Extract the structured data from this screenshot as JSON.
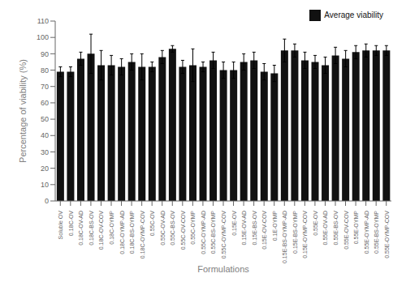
{
  "chart_data": {
    "type": "bar",
    "xlabel": "Formulations",
    "ylabel": "Percentage of viability (%)",
    "categories": [
      "Soluble OV",
      "0.18C-OV",
      "0.18C-OV-AD",
      "0.18C-BS-OV",
      "0.18C-OV-COV",
      "0.18C-OYMP",
      "0.18C-OYMP-AD",
      "0.18C-BS-OYMP",
      "0.18C-OYMP-COV",
      "0.55C-OV",
      "0.55C-OV-AD",
      "0.55C-BS-OV",
      "0.55C-OV-COV",
      "0.55C-OYMP",
      "0.55C-OYMP-AD",
      "0.55C-BS-OYMP",
      "0.55C-OYMP-COV",
      "0.15E-OV",
      "0.15E-OV-AD",
      "0.15E-BS-OV",
      "0.15E-OV-COV",
      "0.1E-OYMP",
      "0.15E-BS-OYMP-AD",
      "0.15E-BS-OYMP",
      "0.15E-OYMP-COV",
      "0.55E-OV",
      "0.55E-OV-AD",
      "0.55E-BS-OV",
      "0.55E-OV-COV",
      "0.55E-OYMP",
      "0.55E-OYMP-AD",
      "0.55E-BS-OYMP",
      "0.55E-OYMP-COV"
    ],
    "series": [
      {
        "name": "Average viability",
        "color": "#111111",
        "values": [
          79,
          79,
          87,
          90,
          83,
          83,
          82,
          85,
          82,
          82,
          88,
          93,
          82,
          83,
          82,
          86,
          80,
          80,
          85,
          86,
          79,
          78,
          92,
          92,
          86,
          85,
          83,
          89,
          87,
          91,
          92,
          92,
          92
        ],
        "errors": [
          3,
          3,
          4,
          12,
          9,
          6,
          5,
          5,
          8,
          3,
          4,
          2,
          4,
          10,
          3,
          5,
          5,
          5,
          5,
          5,
          5,
          5,
          7,
          4,
          5,
          4,
          5,
          5,
          5,
          4,
          4,
          3,
          3
        ]
      }
    ],
    "ylim": [
      0,
      110
    ],
    "yticks": [
      0,
      10,
      20,
      30,
      40,
      50,
      60,
      70,
      80,
      90,
      100,
      110
    ],
    "grid": false,
    "legend": "upper right"
  }
}
